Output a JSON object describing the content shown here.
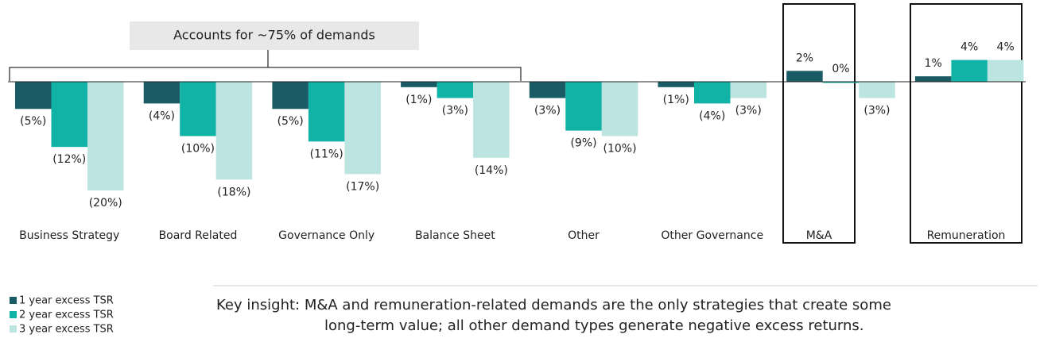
{
  "chart_data": {
    "type": "bar",
    "categories": [
      "Business Strategy",
      "Board Related",
      "Governance Only",
      "Balance Sheet",
      "Other",
      "Other Governance",
      "M&A",
      "Remuneration"
    ],
    "series": [
      {
        "name": "1 year excess TSR",
        "color": "#1a5c66",
        "values": [
          -5,
          -4,
          -5,
          -1,
          -3,
          -1,
          2,
          1
        ],
        "value_labels": [
          "(5%)",
          "(4%)",
          "(5%)",
          "(1%)",
          "(3%)",
          "(1%)",
          "2%",
          "1%"
        ]
      },
      {
        "name": "2 year excess TSR",
        "color": "#10b3a6",
        "values": [
          -12,
          -10,
          -11,
          -3,
          -9,
          -4,
          0,
          4
        ],
        "value_labels": [
          "(12%)",
          "(10%)",
          "(11%)",
          "(3%)",
          "(9%)",
          "(4%)",
          "0%",
          "4%"
        ]
      },
      {
        "name": "3 year excess TSR",
        "color": "#bce4e0",
        "values": [
          -20,
          -18,
          -17,
          -14,
          -10,
          -3,
          -3,
          4
        ],
        "value_labels": [
          "(20%)",
          "(18%)",
          "(17%)",
          "(14%)",
          "(10%)",
          "(3%)",
          "(3%)",
          "4%"
        ]
      }
    ],
    "ylim": [
      -23,
      5
    ],
    "annotation": "Accounts for ~75% of demands",
    "insight": [
      "Key insight: M&A and remuneration-related demands are the only strategies that create some",
      "long-term value; all other demand types generate negative excess returns."
    ]
  }
}
